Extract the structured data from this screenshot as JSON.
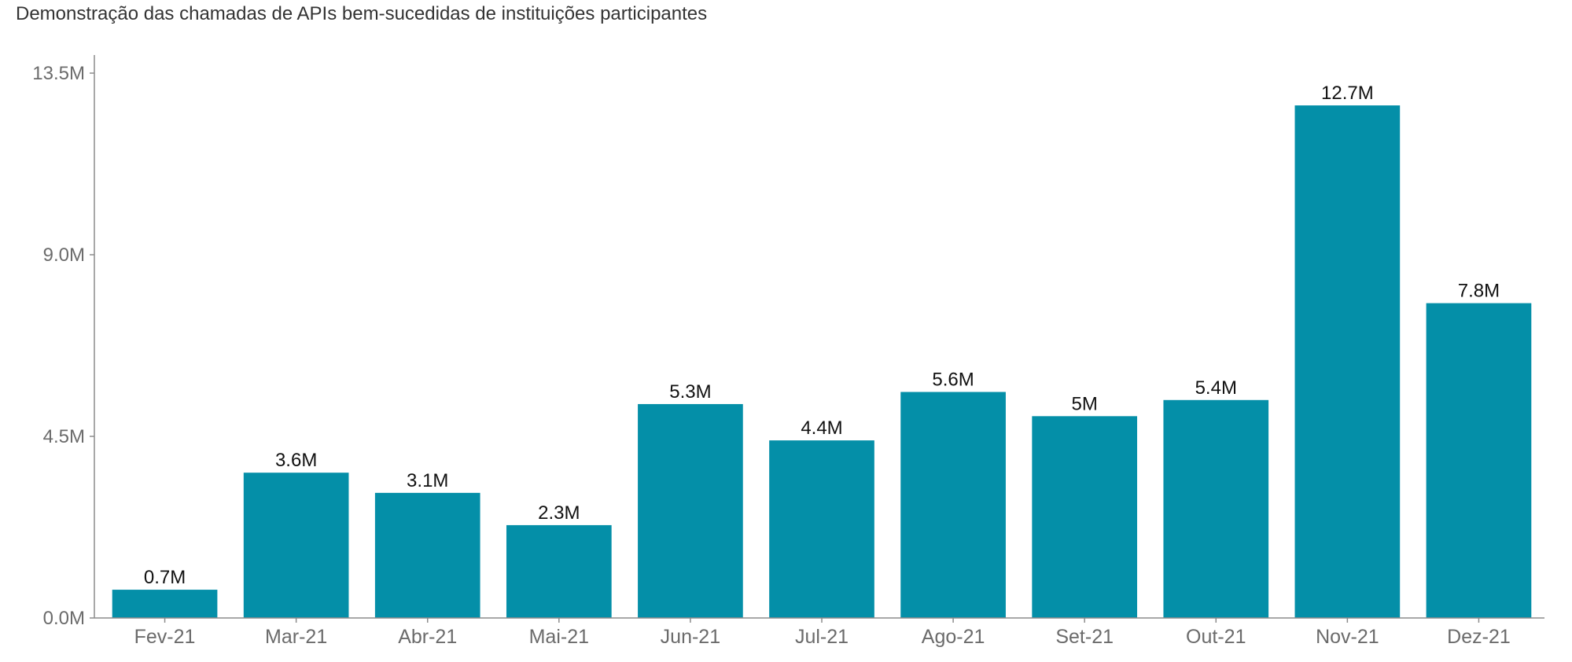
{
  "colors": {
    "bar": "#048fa8",
    "axis": "#8c8c8c",
    "tick_text": "#6b6b6b",
    "value_text": "#111111",
    "background": "#ffffff"
  },
  "chart_data": {
    "type": "bar",
    "title": "Demonstração das chamadas de APIs bem-sucedidas de instituições participantes",
    "xlabel": "",
    "ylabel": "",
    "categories": [
      "Fev-21",
      "Mar-21",
      "Abr-21",
      "Mai-21",
      "Jun-21",
      "Jul-21",
      "Ago-21",
      "Set-21",
      "Out-21",
      "Nov-21",
      "Dez-21"
    ],
    "values": [
      0.7,
      3.6,
      3.1,
      2.3,
      5.3,
      4.4,
      5.6,
      5.0,
      5.4,
      12.7,
      7.8
    ],
    "value_labels": [
      "0.7M",
      "3.6M",
      "3.1M",
      "2.3M",
      "5.3M",
      "4.4M",
      "5.6M",
      "5M",
      "5.4M",
      "12.7M",
      "7.8M"
    ],
    "unit": "M",
    "ylim": [
      0,
      13.5
    ],
    "y_ticks": [
      0,
      4.5,
      9.0,
      13.5
    ],
    "y_tick_labels": [
      "0.0M",
      "4.5M",
      "9.0M",
      "13.5M"
    ],
    "grid": false,
    "legend": "none"
  }
}
